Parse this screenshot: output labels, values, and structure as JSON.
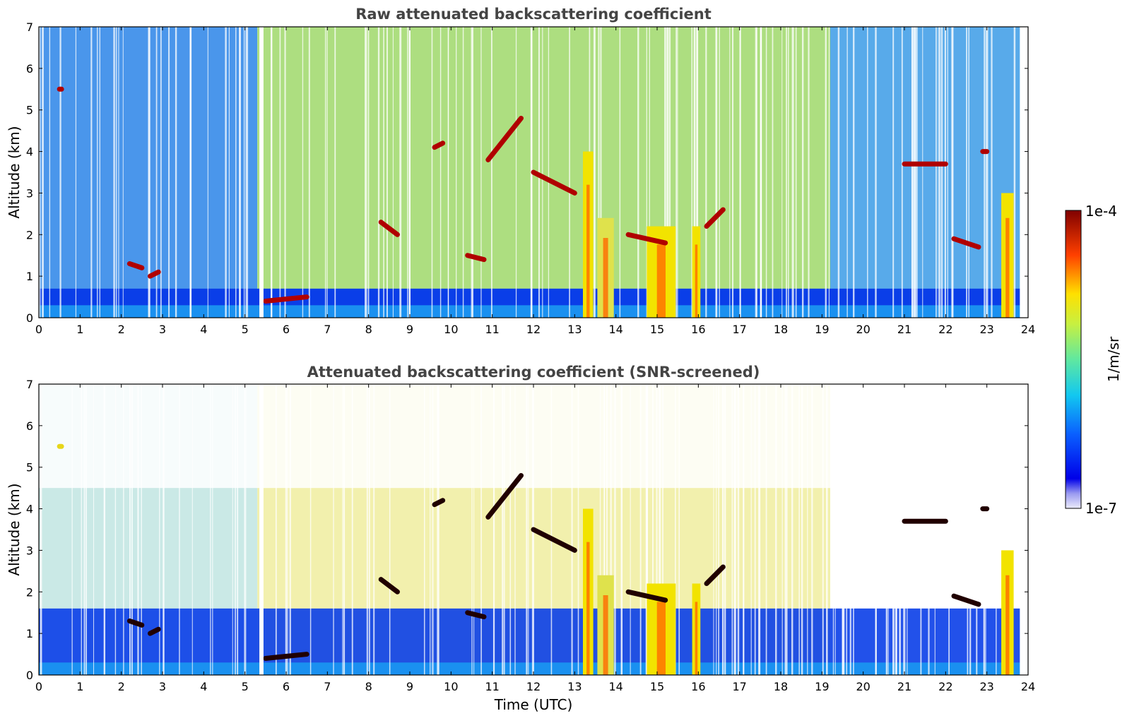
{
  "figure": {
    "colorbar": {
      "max_label": "1e-4",
      "min_label": "1e-7",
      "unit_label": "1/m/sr",
      "colormap": "jet",
      "scale": "log",
      "range": [
        1e-07,
        0.0001
      ]
    },
    "xlabel": "Time (UTC)"
  },
  "chart_data": [
    {
      "type": "heatmap",
      "title": "Raw attenuated backscattering coefficient",
      "ylabel": "Altitude (km)",
      "xlabel": "",
      "xlim": [
        0,
        24
      ],
      "ylim": [
        0,
        7
      ],
      "x_ticks": [
        "0",
        "1",
        "2",
        "3",
        "4",
        "5",
        "6",
        "7",
        "8",
        "9",
        "10",
        "11",
        "12",
        "13",
        "14",
        "15",
        "16",
        "17",
        "18",
        "19",
        "20",
        "21",
        "22",
        "23",
        "24"
      ],
      "y_ticks": [
        "0",
        "1",
        "2",
        "3",
        "4",
        "5",
        "6",
        "7"
      ],
      "grid": false,
      "screening": "none",
      "background_layers": [
        {
          "x_range": [
            0,
            5.3
          ],
          "color": "#2a84e8"
        },
        {
          "x_range": [
            5.3,
            19.2
          ],
          "color": "#9fd86a"
        },
        {
          "x_range": [
            19.2,
            24
          ],
          "color": "#3b9be6"
        }
      ],
      "boundary_layer": {
        "top_km": 0.7,
        "color": "#0a3ee8"
      },
      "cloud_layers": [
        {
          "x": [
            0.5,
            0.55
          ],
          "alt": [
            5.5,
            5.5
          ],
          "color": "#b00000"
        },
        {
          "x": [
            2.2,
            2.5
          ],
          "alt": [
            1.3,
            1.2
          ],
          "color": "#b00000"
        },
        {
          "x": [
            2.7,
            2.9
          ],
          "alt": [
            1.0,
            1.1
          ],
          "color": "#b00000"
        },
        {
          "x": [
            5.5,
            6.5
          ],
          "alt": [
            0.4,
            0.5
          ],
          "color": "#b00000"
        },
        {
          "x": [
            8.3,
            8.7
          ],
          "alt": [
            2.3,
            2.0
          ],
          "color": "#b00000"
        },
        {
          "x": [
            9.6,
            9.8
          ],
          "alt": [
            4.1,
            4.2
          ],
          "color": "#b00000"
        },
        {
          "x": [
            10.4,
            10.8
          ],
          "alt": [
            1.5,
            1.4
          ],
          "color": "#b00000"
        },
        {
          "x": [
            10.9,
            11.7
          ],
          "alt": [
            3.8,
            4.8
          ],
          "color": "#b00000"
        },
        {
          "x": [
            12.0,
            13.0
          ],
          "alt": [
            3.5,
            3.0
          ],
          "color": "#b00000"
        },
        {
          "x": [
            14.3,
            15.2
          ],
          "alt": [
            2.0,
            1.8
          ],
          "color": "#b00000"
        },
        {
          "x": [
            16.2,
            16.6
          ],
          "alt": [
            2.2,
            2.6
          ],
          "color": "#b00000"
        },
        {
          "x": [
            21.0,
            22.0
          ],
          "alt": [
            3.7,
            3.7
          ],
          "color": "#b00000"
        },
        {
          "x": [
            22.9,
            23.0
          ],
          "alt": [
            4.0,
            4.0
          ],
          "color": "#b00000"
        },
        {
          "x": [
            22.2,
            22.8
          ],
          "alt": [
            1.9,
            1.7
          ],
          "color": "#b00000"
        }
      ],
      "precip_columns": [
        {
          "x": [
            13.2,
            13.45
          ],
          "top_km": 4.0,
          "color": "#f2e300"
        },
        {
          "x": [
            13.55,
            13.95
          ],
          "top_km": 2.4,
          "color": "#dfe24c"
        },
        {
          "x": [
            14.75,
            15.45
          ],
          "top_km": 2.2,
          "color": "#f2e300"
        },
        {
          "x": [
            15.85,
            16.05
          ],
          "top_km": 2.2,
          "color": "#f2e300"
        },
        {
          "x": [
            23.35,
            23.65
          ],
          "top_km": 3.0,
          "color": "#f2e300"
        }
      ],
      "gaps": [
        {
          "x": [
            5.35,
            5.45
          ]
        },
        {
          "x": [
            23.8,
            24.0
          ]
        }
      ]
    },
    {
      "type": "heatmap",
      "title": "Attenuated backscattering coefficient (SNR-screened)",
      "ylabel": "Altitude (km)",
      "xlabel": "Time (UTC)",
      "xlim": [
        0,
        24
      ],
      "ylim": [
        0,
        7
      ],
      "x_ticks": [
        "0",
        "1",
        "2",
        "3",
        "4",
        "5",
        "6",
        "7",
        "8",
        "9",
        "10",
        "11",
        "12",
        "13",
        "14",
        "15",
        "16",
        "17",
        "18",
        "19",
        "20",
        "21",
        "22",
        "23",
        "24"
      ],
      "y_ticks": [
        "0",
        "1",
        "2",
        "3",
        "4",
        "5",
        "6",
        "7"
      ],
      "grid": false,
      "screening": "snr",
      "background_layers": [
        {
          "x_range": [
            0,
            5.3
          ],
          "color": "#9ed7d2"
        },
        {
          "x_range": [
            5.3,
            19.2
          ],
          "color": "#e8e46a"
        },
        {
          "x_range": [
            19.2,
            24
          ],
          "color": "#ffffff"
        }
      ],
      "boundary_layer": {
        "top_km": 1.6,
        "color": "#0a3ee8"
      },
      "cloud_layers": [
        {
          "x": [
            0.5,
            0.55
          ],
          "alt": [
            5.5,
            5.5
          ],
          "color": "#e7d61a"
        },
        {
          "x": [
            2.2,
            2.5
          ],
          "alt": [
            1.3,
            1.2
          ],
          "color": "#200000"
        },
        {
          "x": [
            2.7,
            2.9
          ],
          "alt": [
            1.0,
            1.1
          ],
          "color": "#200000"
        },
        {
          "x": [
            5.5,
            6.5
          ],
          "alt": [
            0.4,
            0.5
          ],
          "color": "#200000"
        },
        {
          "x": [
            8.3,
            8.7
          ],
          "alt": [
            2.3,
            2.0
          ],
          "color": "#200000"
        },
        {
          "x": [
            9.6,
            9.8
          ],
          "alt": [
            4.1,
            4.2
          ],
          "color": "#200000"
        },
        {
          "x": [
            10.4,
            10.8
          ],
          "alt": [
            1.5,
            1.4
          ],
          "color": "#200000"
        },
        {
          "x": [
            10.9,
            11.7
          ],
          "alt": [
            3.8,
            4.8
          ],
          "color": "#200000"
        },
        {
          "x": [
            12.0,
            13.0
          ],
          "alt": [
            3.5,
            3.0
          ],
          "color": "#200000"
        },
        {
          "x": [
            14.3,
            15.2
          ],
          "alt": [
            2.0,
            1.8
          ],
          "color": "#200000"
        },
        {
          "x": [
            16.2,
            16.6
          ],
          "alt": [
            2.2,
            2.6
          ],
          "color": "#200000"
        },
        {
          "x": [
            21.0,
            22.0
          ],
          "alt": [
            3.7,
            3.7
          ],
          "color": "#200000"
        },
        {
          "x": [
            22.9,
            23.0
          ],
          "alt": [
            4.0,
            4.0
          ],
          "color": "#200000"
        },
        {
          "x": [
            22.2,
            22.8
          ],
          "alt": [
            1.9,
            1.7
          ],
          "color": "#200000"
        }
      ],
      "precip_columns": [
        {
          "x": [
            13.2,
            13.45
          ],
          "top_km": 4.0,
          "color": "#f2e300"
        },
        {
          "x": [
            13.55,
            13.95
          ],
          "top_km": 2.4,
          "color": "#dfe24c"
        },
        {
          "x": [
            14.75,
            15.45
          ],
          "top_km": 2.2,
          "color": "#f2e300"
        },
        {
          "x": [
            15.85,
            16.05
          ],
          "top_km": 2.2,
          "color": "#f2e300"
        },
        {
          "x": [
            23.35,
            23.65
          ],
          "top_km": 3.0,
          "color": "#f2e300"
        }
      ],
      "gaps": [
        {
          "x": [
            5.35,
            5.45
          ]
        },
        {
          "x": [
            23.8,
            24.0
          ]
        }
      ]
    }
  ]
}
